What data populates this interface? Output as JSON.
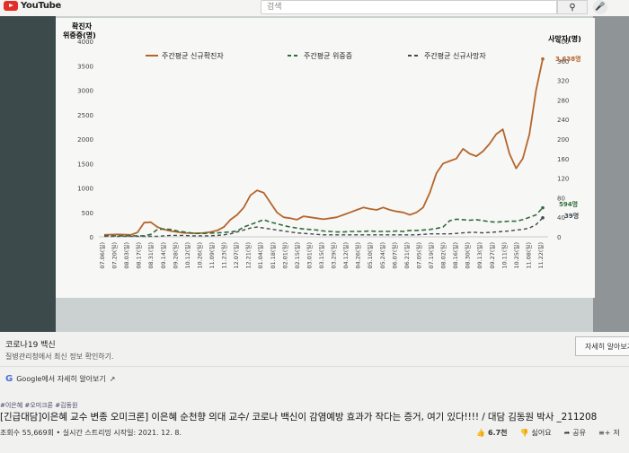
{
  "header": {
    "logo_text": "YouTube",
    "search_placeholder": "검색",
    "search_icon": "search-icon",
    "mic_icon": "mic-icon"
  },
  "chart": {
    "left_axis_title_1": "확진자",
    "left_axis_title_2": "위중증(명)",
    "right_axis_title": "사망자(명)",
    "left_ticks": [
      "4000",
      "3500",
      "3000",
      "2500",
      "2000",
      "1500",
      "1000",
      "500",
      "0"
    ],
    "right_ticks": [
      "400",
      "360",
      "320",
      "280",
      "240",
      "200",
      "160",
      "120",
      "80",
      "40",
      "0"
    ],
    "legend": [
      {
        "label": "주간평균 신규확진자",
        "color": "#b5652c",
        "style": "solid"
      },
      {
        "label": "주간평균 위중증",
        "color": "#2f6b3a",
        "style": "dash"
      },
      {
        "label": "주간평균 신규사망자",
        "color": "#3d4a52",
        "style": "dash"
      }
    ],
    "x_labels": [
      "07.06(일)",
      "07.20(일)",
      "08.03(일)",
      "08.17(일)",
      "08.31(일)",
      "09.14(일)",
      "09.28(일)",
      "10.12(일)",
      "10.26(일)",
      "11.09(일)",
      "11.23(일)",
      "12.07(일)",
      "12.21(일)",
      "01.04(일)",
      "01.18(일)",
      "02.01(일)",
      "02.15(일)",
      "03.01(일)",
      "03.15(일)",
      "03.29(일)",
      "04.12(일)",
      "04.26(일)",
      "05.10(일)",
      "05.24(일)",
      "06.07(일)",
      "06.21(일)",
      "07.05(일)",
      "07.19(일)",
      "08.02(일)",
      "08.16(일)",
      "08.30(일)",
      "09.13(일)",
      "09.27(일)",
      "10.11(일)",
      "10.25(일)",
      "11.08(일)",
      "11.22(일)"
    ],
    "annotations": {
      "confirmed_last": "3,638명",
      "severe_last": "594명",
      "deaths_last": "39명"
    }
  },
  "chart_data": {
    "type": "line",
    "xlabel": "",
    "ylabel": "확진자 위중증(명)",
    "ylim": [
      0,
      4000
    ],
    "y2label": "사망자(명)",
    "y2lim": [
      0,
      400
    ],
    "series": [
      {
        "name": "주간평균 신규확진자",
        "axis": "left",
        "values": [
          40,
          45,
          50,
          45,
          40,
          90,
          290,
          300,
          200,
          150,
          120,
          100,
          80,
          75,
          70,
          80,
          100,
          130,
          200,
          350,
          450,
          600,
          850,
          950,
          900,
          700,
          500,
          400,
          380,
          350,
          420,
          400,
          380,
          360,
          380,
          400,
          450,
          500,
          550,
          600,
          570,
          550,
          600,
          550,
          520,
          500,
          450,
          500,
          600,
          900,
          1300,
          1500,
          1550,
          1600,
          1800,
          1700,
          1650,
          1750,
          1900,
          2100,
          2200,
          1700,
          1400,
          1600,
          2100,
          3000,
          3638
        ]
      },
      {
        "name": "주간평균 위중증",
        "axis": "left",
        "values": [
          20,
          20,
          20,
          20,
          20,
          20,
          20,
          50,
          150,
          160,
          150,
          120,
          100,
          80,
          70,
          70,
          75,
          80,
          90,
          100,
          120,
          200,
          250,
          300,
          350,
          300,
          270,
          230,
          200,
          180,
          160,
          150,
          140,
          120,
          110,
          100,
          100,
          110,
          110,
          110,
          120,
          110,
          110,
          110,
          120,
          110,
          130,
          130,
          140,
          150,
          170,
          200,
          330,
          360,
          350,
          340,
          350,
          330,
          310,
          300,
          310,
          320,
          320,
          350,
          400,
          450,
          594
        ]
      },
      {
        "name": "주간평균 신규사망자",
        "axis": "right",
        "values": [
          1,
          1,
          1,
          1,
          1,
          1,
          1,
          1,
          1,
          2,
          3,
          3,
          3,
          2,
          2,
          2,
          2,
          3,
          4,
          6,
          10,
          14,
          18,
          20,
          18,
          16,
          14,
          12,
          10,
          8,
          7,
          6,
          5,
          4,
          4,
          4,
          4,
          4,
          4,
          4,
          4,
          4,
          4,
          4,
          4,
          4,
          4,
          4,
          5,
          6,
          6,
          6,
          6,
          7,
          8,
          9,
          9,
          8,
          9,
          10,
          11,
          12,
          14,
          15,
          18,
          25,
          39
        ]
      }
    ]
  },
  "info_panel": {
    "title": "코로나19 백신",
    "subtitle": "질병관리청에서 최신 정보 확인하기.",
    "more_button": "자세히 알아보기",
    "google_link": "Google에서 자세히 알아보기",
    "google_icon": "google-icon",
    "external_icon": "external-link-icon"
  },
  "video": {
    "hashtags": "#이은혜 #오미크론 #김동원",
    "title": "[긴급대담]이은혜 교수 변종 오미크론] 이은혜 순천향 의대 교수/ 코로나 백신이 감염예방 효과가 작다는 증거, 여기 있다!!!! / 대담 김동원 박사 _211208",
    "meta": "조회수 55,669회 • 실시간 스트리밍 시작일: 2021. 12. 8.",
    "like_count": "6.7천",
    "dislike_label": "싫어요",
    "share_label": "공유",
    "save_label": "저",
    "like_icon": "thumbs-up-icon",
    "dislike_icon": "thumbs-down-icon",
    "share_icon": "share-icon",
    "save_icon": "save-playlist-icon"
  }
}
